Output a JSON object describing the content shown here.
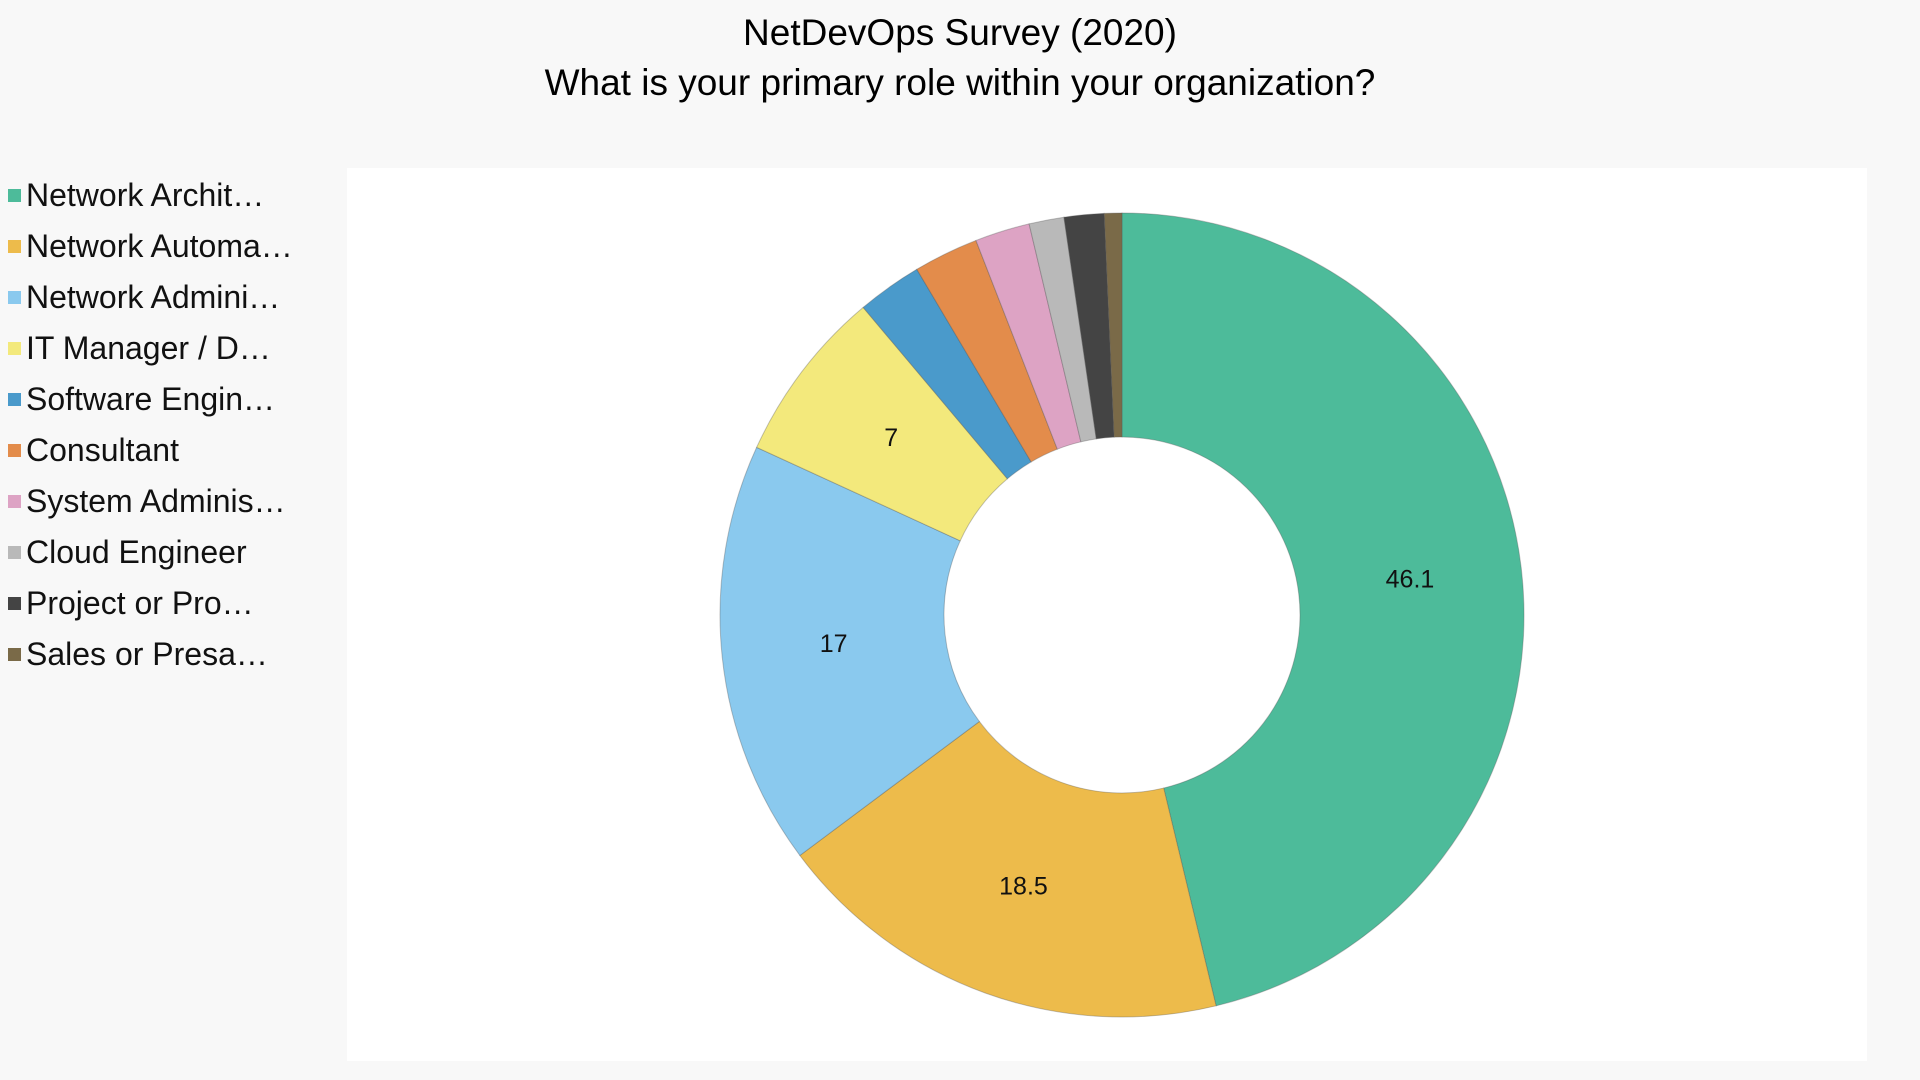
{
  "chart_data": {
    "type": "pie",
    "subtype": "donut",
    "title": [
      "NetDevOps Survey (2020)",
      "What is your primary role within your organization?"
    ],
    "legend_position": "left",
    "categories": [
      "Network Archit…",
      "Network Automa…",
      "Network Admini…",
      "IT Manager / D…",
      "Software Engin…",
      "Consultant",
      "System Adminis…",
      "Cloud Engineer",
      "Project or Pro…",
      "Sales or Presa…"
    ],
    "values": [
      46.1,
      18.5,
      17,
      7,
      2.6,
      2.6,
      2.2,
      1.4,
      1.6,
      0.7
    ],
    "data_labels": [
      "46.1",
      "18.5",
      "17",
      "7",
      "",
      "",
      "",
      "",
      "",
      ""
    ],
    "colors": [
      "#4dbb9a",
      "#edbb4b",
      "#8ac9ee",
      "#f3e97c",
      "#4a9acb",
      "#e38c4b",
      "#dda3c4",
      "#b9b9b9",
      "#444444",
      "#7a6a48"
    ]
  }
}
